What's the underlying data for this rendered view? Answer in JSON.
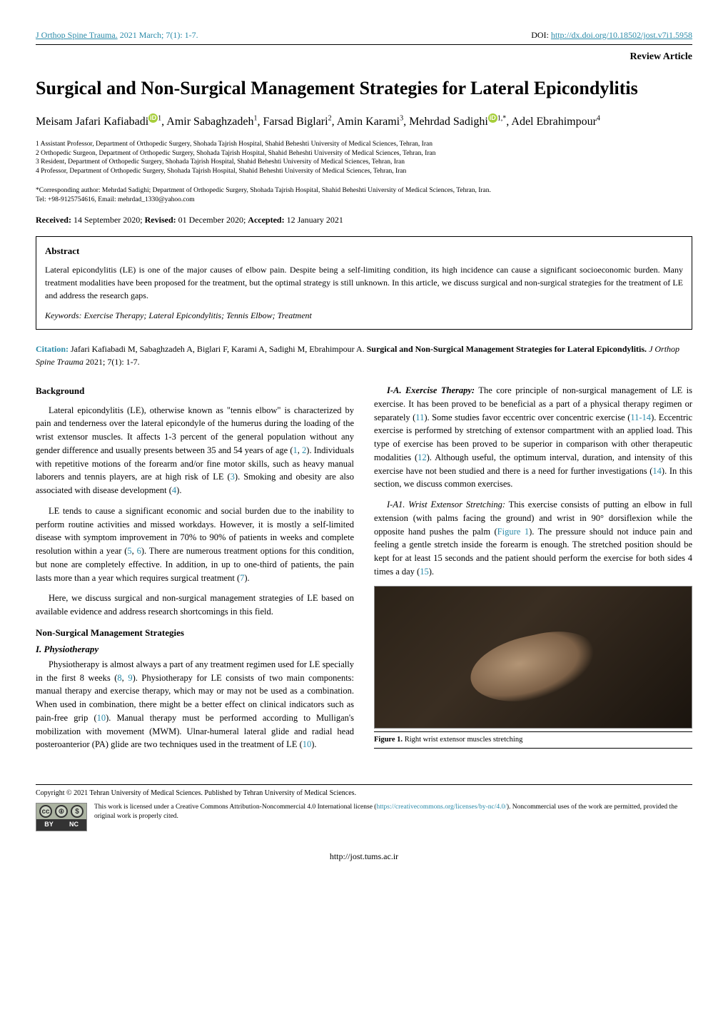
{
  "header": {
    "journal_link": "J Orthop Spine Trauma.",
    "issue": " 2021 March; 7(1): 1-7.",
    "doi_label": "DOI: ",
    "doi_link": "http://dx.doi.org/10.18502/jost.v7i1.5958",
    "article_type": "Review Article"
  },
  "title": "Surgical and Non-Surgical Management Strategies for Lateral Epicondylitis",
  "authors": {
    "a1_name": "Meisam Jafari Kafiabadi",
    "a1_sup": "1",
    "a2_name": "Amir Sabaghzadeh",
    "a2_sup": "1",
    "a3_name": "Farsad Biglari",
    "a3_sup": "2",
    "a4_name": "Amin Karami",
    "a4_sup": "3",
    "a5_name": "Mehrdad Sadighi",
    "a5_sup": "1,*",
    "a6_name": "Adel Ebrahimpour",
    "a6_sup": "4"
  },
  "affiliations": {
    "l1": "1 Assistant Professor, Department of Orthopedic Surgery, Shohada Tajrish Hospital, Shahid Beheshti University of Medical Sciences, Tehran, Iran",
    "l2": "2 Orthopedic Surgeon, Department of Orthopedic Surgery, Shohada Tajrish Hospital, Shahid Beheshti University of Medical Sciences, Tehran, Iran",
    "l3": "3 Resident, Department of Orthopedic Surgery, Shohada Tajrish Hospital, Shahid Beheshti University of Medical Sciences, Tehran, Iran",
    "l4": "4 Professor, Department of Orthopedic Surgery, Shohada Tajrish Hospital, Shahid Beheshti University of Medical Sciences, Tehran, Iran"
  },
  "corresponding": {
    "label": "*Corresponding author: ",
    "text": "Mehrdad Sadighi; Department of Orthopedic Surgery, Shohada Tajrish Hospital, Shahid Beheshti University of Medical Sciences, Tehran, Iran.",
    "tel_email": "Tel: +98-9125754616, Email: mehrdad_1330@yahoo.com"
  },
  "dates": {
    "received_label": "Received:",
    "received": " 14 September 2020; ",
    "revised_label": "Revised:",
    "revised": " 01 December 2020; ",
    "accepted_label": "Accepted:",
    "accepted": " 12 January 2021"
  },
  "abstract": {
    "heading": "Abstract",
    "body": "Lateral epicondylitis (LE) is one of the major causes of elbow pain. Despite being a self-limiting condition, its high incidence can cause a significant socioeconomic burden. Many treatment modalities have been proposed for the treatment, but the optimal strategy is still unknown. In this article, we discuss surgical and non-surgical strategies for the treatment of LE and address the research gaps.",
    "keywords_label": "Keywords: ",
    "keywords": "Exercise Therapy; Lateral Epicondylitis; Tennis Elbow; Treatment"
  },
  "citation": {
    "label": "Citation:",
    "authors": " Jafari Kafiabadi M, Sabaghzadeh A, Biglari F, Karami A, Sadighi M, Ebrahimpour A. ",
    "title_bold": "Surgical and Non-Surgical Management Strategies for Lateral Epicondylitis.",
    "journal_italic": " J Orthop Spine Trauma",
    "rest": " 2021; 7(1): 1-7."
  },
  "body": {
    "background_h": "Background",
    "p1a": "Lateral epicondylitis (LE), otherwise known as \"tennis elbow\" is characterized by pain and tenderness over the lateral epicondyle of the humerus during the loading of the wrist extensor muscles. It affects 1-3 percent of the general population without any gender difference and usually presents between 35 and 54 years of age (",
    "r1": "1",
    "p1b": ", ",
    "r2": "2",
    "p1c": "). Individuals with repetitive motions of the forearm and/or fine motor skills, such as heavy manual laborers and tennis players, are at high risk of LE (",
    "r3": "3",
    "p1d": "). Smoking and obesity are also associated with disease development (",
    "r4": "4",
    "p1e": ").",
    "p2a": "LE tends to cause a significant economic and social burden due to the inability to perform routine activities and missed workdays. However, it is mostly a self-limited disease with symptom improvement in 70% to 90% of patients in weeks and complete resolution within a year (",
    "r5": "5",
    "p2b": ", ",
    "r6": "6",
    "p2c": "). There are numerous treatment options for this condition, but none are completely effective. In addition, in up to one-third of patients, the pain lasts more than a year which requires surgical treatment (",
    "r7": "7",
    "p2d": ").",
    "p3": "Here, we discuss surgical and non-surgical management strategies of LE based on available evidence and address research shortcomings in this field.",
    "nonsurg_h": "Non-Surgical Management Strategies",
    "physio_h": "I. Physiotherapy",
    "p4a": "Physiotherapy is almost always a part of any treatment regimen used for LE specially in the first 8 weeks (",
    "r8": "8",
    "p4b": ", ",
    "r9": "9",
    "p4c": "). Physiotherapy for LE consists of two main components: manual therapy and exercise therapy, which may or may not be used as a combination. When used in combination, there might be a better effect on clinical indicators such as pain-free grip (",
    "r10": "10",
    "p4d": "). Manual therapy must be performed according to Mulligan's mobilization with movement (MWM). Ulnar-humeral lateral glide and radial head posteroanterior (PA) glide are two techniques used in the treatment of LE (",
    "r10b": "10",
    "p4e": ").",
    "ia_run_in": "I-A. Exercise Therapy:",
    "p5a": " The core principle of non-surgical management of LE is exercise. It has been proved to be beneficial as a part of a physical therapy regimen or separately (",
    "r11": "11",
    "p5b": "). Some studies favor eccentric over concentric exercise (",
    "r11_14": "11-14",
    "p5c": "). Eccentric exercise is performed by stretching of extensor compartment with an applied load. This type of exercise has been proved to be superior in comparison with other therapeutic modalities (",
    "r12": "12",
    "p5d": "). Although useful, the optimum interval, duration, and intensity of this exercise have not been studied and there is a need for further investigations (",
    "r14": "14",
    "p5e": "). In this section, we discuss common exercises.",
    "ia1_run_in": "I-A1. Wrist Extensor Stretching:",
    "p6a": " This exercise consists of putting an elbow in full extension (with palms facing the ground) and wrist in 90° dorsiflexion while the opposite hand pushes the palm (",
    "fig1_link": "Figure 1",
    "p6b": "). The pressure should not induce pain and feeling a gentle stretch inside the forearm is enough. The stretched position should be kept for at least 15 seconds and the patient should perform the exercise for both sides 4 times a day (",
    "r15": "15",
    "p6c": ")."
  },
  "figure1": {
    "label": "Figure 1.",
    "caption": " Right wrist extensor muscles stretching"
  },
  "footer": {
    "copyright": "Copyright © 2021 Tehran University of Medical Sciences. Published by Tehran University of Medical Sciences.",
    "cc_cc": "cc",
    "cc_by_icon": "🅯",
    "cc_nc_icon": "$",
    "cc_by": "BY",
    "cc_nc": "NC",
    "license_a": "This work is licensed under a Creative Commons Attribution-Noncommercial 4.0 International license (",
    "license_link": "https://creativecommons.org/licenses/by-nc/4.0/",
    "license_b": "). Noncommercial uses of the work are permitted, provided the original work is properly cited.",
    "page_url": "http://jost.tums.ac.ir"
  },
  "colors": {
    "link": "#2a8aa8",
    "orcid": "#a6ce39",
    "text": "#000000",
    "bg": "#ffffff"
  }
}
